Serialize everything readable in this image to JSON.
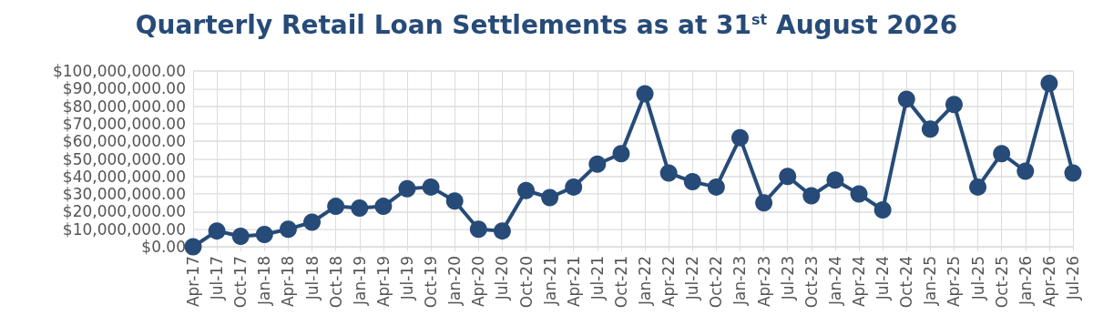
{
  "chart_data": {
    "type": "line",
    "title": "Quarterly Retail Loan Settlements as at 31$^{st}$ August 2026",
    "categories": [
      "Apr-17",
      "Jul-17",
      "Oct-17",
      "Jan-18",
      "Apr-18",
      "Jul-18",
      "Oct-18",
      "Jan-19",
      "Apr-19",
      "Jul-19",
      "Oct-19",
      "Jan-20",
      "Apr-20",
      "Jul-20",
      "Oct-20",
      "Jan-21",
      "Apr-21",
      "Jul-21",
      "Oct-21",
      "Jan-22",
      "Apr-22",
      "Jul-22",
      "Oct-22",
      "Jan-23",
      "Apr-23",
      "Jul-23",
      "Oct-23",
      "Jan-24",
      "Apr-24",
      "Jul-24",
      "Oct-24",
      "Jan-25",
      "Apr-25",
      "Jul-25",
      "Oct-25",
      "Jan-26",
      "Apr-26",
      "Jul-26"
    ],
    "series": [
      {
        "color": "#274b78",
        "values": [
          0,
          9000000,
          6000000,
          7000000,
          10000000,
          14000000,
          23000000,
          22000000,
          23000000,
          33000000,
          34000000,
          26000000,
          10000000,
          9000000,
          32000000,
          28000000,
          34000000,
          47000000,
          53000000,
          87000000,
          42000000,
          37000000,
          34000000,
          62000000,
          25000000,
          40000000,
          29000000,
          38000000,
          30000000,
          21000000,
          84000000,
          67000000,
          81000000,
          34000000,
          53000000,
          43000000,
          93000000,
          42000000
        ]
      }
    ],
    "ylim": [
      0,
      100000000
    ],
    "yticks": [
      {
        "value": 0,
        "label": "$0.00"
      },
      {
        "value": 10000000,
        "label": "$10,000,000.00"
      },
      {
        "value": 20000000,
        "label": "$20,000,000.00"
      },
      {
        "value": 30000000,
        "label": "$30,000,000.00"
      },
      {
        "value": 40000000,
        "label": "$40,000,000.00"
      },
      {
        "value": 50000000,
        "label": "$50,000,000.00"
      },
      {
        "value": 60000000,
        "label": "$60,000,000.00"
      },
      {
        "value": 70000000,
        "label": "$70,000,000.00"
      },
      {
        "value": 80000000,
        "label": "$80,000,000.00"
      },
      {
        "value": 90000000,
        "label": "$90,000,000.00"
      },
      {
        "value": 100000000,
        "label": "$100,000,000.00"
      }
    ],
    "grid": true,
    "marker": "circle",
    "line_style": "solid"
  }
}
